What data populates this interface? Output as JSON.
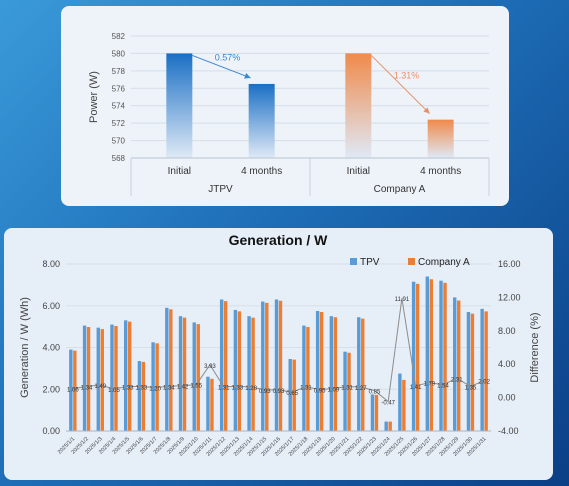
{
  "chart_data": [
    {
      "type": "bar",
      "ylabel": "Power (W)",
      "ylim": [
        568,
        582
      ],
      "yticks": [
        "568",
        "570",
        "572",
        "574",
        "576",
        "578",
        "580",
        "582"
      ],
      "groups": [
        {
          "name": "JTPV",
          "categories": [
            "Initial",
            "4 months"
          ],
          "values": [
            580.0,
            576.5
          ],
          "color": "#1a6fc4",
          "change_label": "0.57%",
          "arrow_color": "#3a86d0"
        },
        {
          "name": "Company A",
          "categories": [
            "Initial",
            "4 months"
          ],
          "values": [
            580.0,
            572.4
          ],
          "color": "#f08a4b",
          "change_label": "1.31%",
          "arrow_color": "#e8906a"
        }
      ],
      "grid": true
    },
    {
      "type": "bar",
      "title": "Generation / W",
      "ylabel": "Generation / W (Wh)",
      "y2label": "Difference (%)",
      "ylim": [
        0,
        8
      ],
      "y2lim": [
        -4,
        16
      ],
      "yticks": [
        "0.00",
        "2.00",
        "4.00",
        "6.00",
        "8.00"
      ],
      "y2ticks": [
        "-4.00",
        "0.00",
        "4.00",
        "8.00",
        "12.00",
        "16.00"
      ],
      "legend_position": "top-right",
      "categories": [
        "2025/1/1",
        "2025/1/2",
        "2025/1/3",
        "2025/1/4",
        "2025/1/5",
        "2025/1/6",
        "2025/1/7",
        "2025/1/8",
        "2025/1/9",
        "2025/1/10",
        "2025/1/11",
        "2025/1/12",
        "2025/1/13",
        "2025/1/14",
        "2025/1/15",
        "2025/1/16",
        "2025/1/17",
        "2025/1/18",
        "2025/1/19",
        "2025/1/20",
        "2025/1/21",
        "2025/1/22",
        "2025/1/23",
        "2025/1/24",
        "2025/1/25",
        "2025/1/26",
        "2025/1/27",
        "2025/1/28",
        "2025/1/29",
        "2025/1/30",
        "2025/1/31"
      ],
      "series": [
        {
          "name": "TPV",
          "color": "#5b9bd5",
          "values": [
            3.9,
            5.05,
            4.95,
            5.1,
            5.3,
            3.35,
            4.25,
            5.9,
            5.5,
            5.2,
            2.6,
            6.3,
            5.8,
            5.5,
            6.2,
            6.3,
            3.45,
            5.05,
            5.75,
            5.5,
            3.8,
            5.45,
            1.75,
            0.45,
            2.75,
            7.15,
            7.4,
            7.2,
            6.4,
            5.7,
            5.85
          ]
        },
        {
          "name": "Company A",
          "color": "#ed7d31",
          "values": [
            3.85,
            4.98,
            4.88,
            5.03,
            5.24,
            3.31,
            4.2,
            5.83,
            5.43,
            5.12,
            2.5,
            6.22,
            5.73,
            5.43,
            6.14,
            6.24,
            3.42,
            4.98,
            5.7,
            5.45,
            3.75,
            5.38,
            1.73,
            0.45,
            2.45,
            7.05,
            7.27,
            7.1,
            6.25,
            5.62,
            5.73
          ]
        }
      ],
      "difference": {
        "name": "Difference",
        "color": "#8c8c8c",
        "values": [
          1.06,
          1.34,
          1.49,
          1.05,
          1.33,
          1.33,
          1.2,
          1.34,
          1.42,
          1.55,
          3.93,
          1.31,
          1.33,
          1.28,
          0.93,
          0.93,
          0.65,
          1.31,
          0.95,
          1.09,
          1.31,
          1.27,
          0.85,
          -0.47,
          11.91,
          1.41,
          1.79,
          1.54,
          2.31,
          1.35,
          2.02
        ],
        "labels": [
          "1.06",
          "1.34",
          "1.49",
          "1.05",
          "1.33",
          "1.33",
          "1.20",
          "1.34",
          "1.42",
          "1.55",
          "3.93",
          "1.31",
          "1.33",
          "1.28",
          "0.93",
          "0.93",
          "0.65",
          "1.31",
          "0.95",
          "1.09",
          "1.31",
          "1.27",
          "0.85",
          "-0.47",
          "11.91",
          "1.41",
          "1.79",
          "1.54",
          "2.31",
          "1.35",
          "2.02"
        ]
      },
      "grid": true
    }
  ]
}
